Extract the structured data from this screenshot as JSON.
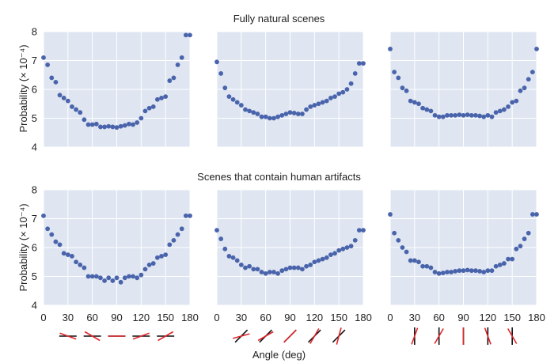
{
  "row_titles": [
    "Fully natural scenes",
    "Scenes that contain human artifacts"
  ],
  "ylabel": "Probability (× 10⁻⁴)",
  "xlabel": "Angle (deg)",
  "colors": {
    "panel_bg": "#dfe6f1",
    "grid": "#ffffff",
    "point": "#4a64ac",
    "line_red": "#e0262b",
    "line_black": "#111111"
  },
  "chart_data": [
    {
      "type": "scatter",
      "title": "Fully natural scenes",
      "xlim": [
        0,
        180
      ],
      "ylim": [
        4,
        8
      ],
      "xticks": [
        0,
        30,
        60,
        90,
        120,
        150,
        180
      ],
      "yticks": [
        4,
        5,
        6,
        7,
        8
      ],
      "grid": true,
      "series": [
        {
          "x": [
            0,
            5,
            10,
            15,
            20,
            25,
            30,
            35,
            40,
            45,
            50,
            55,
            60,
            65,
            70,
            75,
            80,
            85,
            90,
            95,
            100,
            105,
            110,
            115,
            120,
            125,
            130,
            135,
            140,
            145,
            150,
            155,
            160,
            165,
            170,
            175,
            180
          ],
          "y": [
            7.1,
            6.85,
            6.4,
            6.25,
            5.8,
            5.7,
            5.6,
            5.4,
            5.3,
            5.2,
            4.95,
            4.78,
            4.78,
            4.8,
            4.7,
            4.7,
            4.72,
            4.7,
            4.68,
            4.72,
            4.75,
            4.8,
            4.78,
            4.85,
            5.0,
            5.25,
            5.35,
            5.4,
            5.65,
            5.7,
            5.75,
            6.3,
            6.4,
            6.85,
            7.1,
            7.88,
            7.88
          ]
        },
        {
          "x": [
            0,
            5,
            10,
            15,
            20,
            25,
            30,
            35,
            40,
            45,
            50,
            55,
            60,
            65,
            70,
            75,
            80,
            85,
            90,
            95,
            100,
            105,
            110,
            115,
            120,
            125,
            130,
            135,
            140,
            145,
            150,
            155,
            160,
            165,
            170,
            175,
            180
          ],
          "y": [
            6.95,
            6.55,
            6.05,
            5.75,
            5.65,
            5.55,
            5.45,
            5.3,
            5.25,
            5.2,
            5.15,
            5.05,
            5.05,
            5.0,
            5.0,
            5.05,
            5.1,
            5.15,
            5.2,
            5.18,
            5.15,
            5.15,
            5.3,
            5.4,
            5.45,
            5.5,
            5.55,
            5.6,
            5.7,
            5.75,
            5.85,
            5.9,
            6.0,
            6.2,
            6.55,
            6.9,
            6.9
          ]
        },
        {
          "x": [
            0,
            5,
            10,
            15,
            20,
            25,
            30,
            35,
            40,
            45,
            50,
            55,
            60,
            65,
            70,
            75,
            80,
            85,
            90,
            95,
            100,
            105,
            110,
            115,
            120,
            125,
            130,
            135,
            140,
            145,
            150,
            155,
            160,
            165,
            170,
            175,
            180
          ],
          "y": [
            7.4,
            6.6,
            6.4,
            6.05,
            5.95,
            5.6,
            5.55,
            5.5,
            5.35,
            5.3,
            5.25,
            5.1,
            5.05,
            5.05,
            5.1,
            5.1,
            5.1,
            5.12,
            5.1,
            5.12,
            5.1,
            5.1,
            5.08,
            5.05,
            5.1,
            5.05,
            5.2,
            5.25,
            5.3,
            5.4,
            5.55,
            5.6,
            5.95,
            6.05,
            6.35,
            6.6,
            7.4
          ]
        }
      ]
    },
    {
      "type": "scatter",
      "title": "Scenes that contain human artifacts",
      "xlim": [
        0,
        180
      ],
      "ylim": [
        4,
        8
      ],
      "xticks": [
        0,
        30,
        60,
        90,
        120,
        150,
        180
      ],
      "yticks": [
        4,
        5,
        6,
        7,
        8
      ],
      "grid": true,
      "series": [
        {
          "x": [
            0,
            5,
            10,
            15,
            20,
            25,
            30,
            35,
            40,
            45,
            50,
            55,
            60,
            65,
            70,
            75,
            80,
            85,
            90,
            95,
            100,
            105,
            110,
            115,
            120,
            125,
            130,
            135,
            140,
            145,
            150,
            155,
            160,
            165,
            170,
            175,
            180
          ],
          "y": [
            7.1,
            6.65,
            6.45,
            6.2,
            6.1,
            5.8,
            5.75,
            5.7,
            5.5,
            5.4,
            5.3,
            5.0,
            5.0,
            5.0,
            4.95,
            4.85,
            4.95,
            4.85,
            4.95,
            4.8,
            4.95,
            5.0,
            5.0,
            4.95,
            5.05,
            5.25,
            5.4,
            5.45,
            5.65,
            5.7,
            5.75,
            6.1,
            6.25,
            6.45,
            6.65,
            7.1,
            7.1
          ]
        },
        {
          "x": [
            0,
            5,
            10,
            15,
            20,
            25,
            30,
            35,
            40,
            45,
            50,
            55,
            60,
            65,
            70,
            75,
            80,
            85,
            90,
            95,
            100,
            105,
            110,
            115,
            120,
            125,
            130,
            135,
            140,
            145,
            150,
            155,
            160,
            165,
            170,
            175,
            180
          ],
          "y": [
            6.6,
            6.3,
            5.95,
            5.7,
            5.65,
            5.55,
            5.4,
            5.3,
            5.35,
            5.25,
            5.25,
            5.15,
            5.1,
            5.15,
            5.15,
            5.1,
            5.2,
            5.25,
            5.3,
            5.3,
            5.3,
            5.25,
            5.35,
            5.4,
            5.5,
            5.55,
            5.6,
            5.65,
            5.75,
            5.8,
            5.9,
            5.95,
            6.0,
            6.05,
            6.25,
            6.6,
            6.6
          ]
        },
        {
          "x": [
            0,
            5,
            10,
            15,
            20,
            25,
            30,
            35,
            40,
            45,
            50,
            55,
            60,
            65,
            70,
            75,
            80,
            85,
            90,
            95,
            100,
            105,
            110,
            115,
            120,
            125,
            130,
            135,
            140,
            145,
            150,
            155,
            160,
            165,
            170,
            175,
            180
          ],
          "y": [
            7.15,
            6.5,
            6.25,
            6.0,
            5.85,
            5.55,
            5.55,
            5.5,
            5.35,
            5.35,
            5.3,
            5.15,
            5.1,
            5.12,
            5.15,
            5.15,
            5.18,
            5.2,
            5.2,
            5.22,
            5.2,
            5.2,
            5.18,
            5.15,
            5.2,
            5.2,
            5.35,
            5.4,
            5.45,
            5.6,
            5.6,
            5.95,
            6.05,
            6.3,
            6.5,
            7.15,
            7.15
          ]
        }
      ]
    }
  ],
  "angle_icons": [
    {
      "base_deg": 0,
      "tilts": [
        -20,
        -30,
        0,
        20,
        30
      ]
    },
    {
      "base_deg": 45,
      "tilts": [
        -30,
        -15,
        0,
        15,
        30
      ]
    },
    {
      "base_deg": 90,
      "tilts": [
        -20,
        -30,
        0,
        20,
        30
      ]
    }
  ]
}
